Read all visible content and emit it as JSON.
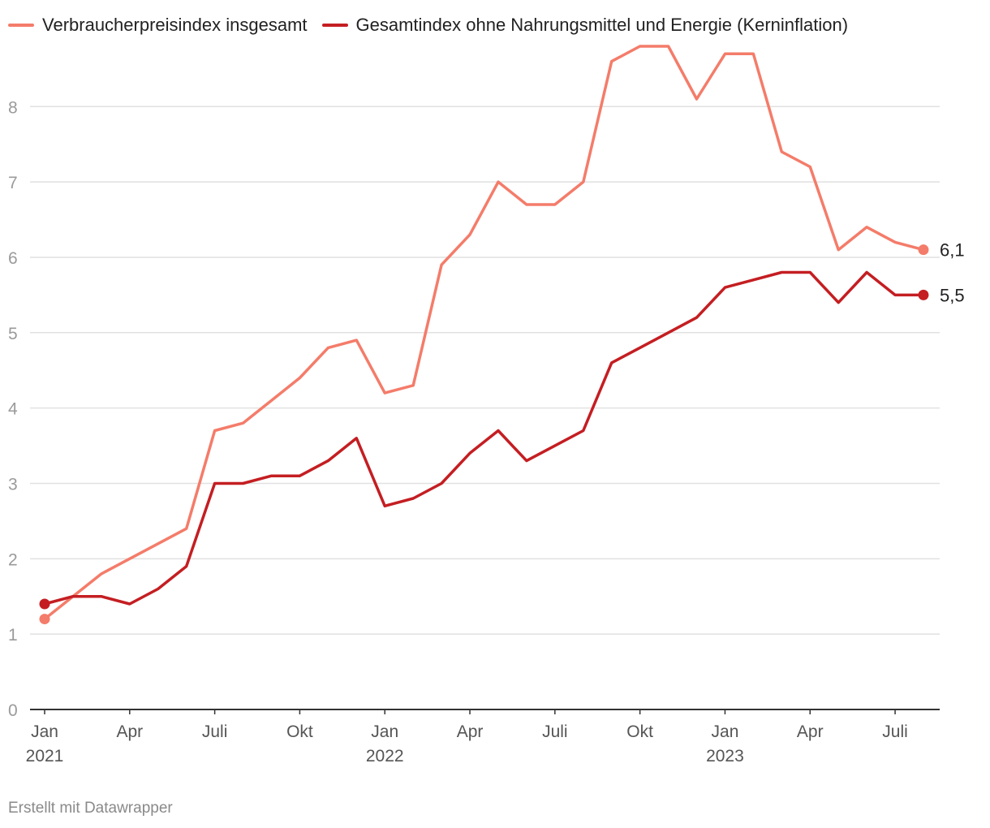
{
  "chart_data": {
    "type": "line",
    "title": "",
    "xlabel": "",
    "ylabel": "",
    "ylim": [
      0,
      8.8
    ],
    "y_ticks": [
      0,
      1,
      2,
      3,
      4,
      5,
      6,
      7,
      8
    ],
    "grid": true,
    "legend_position": "top-left",
    "x": [
      "2021-01",
      "2021-02",
      "2021-03",
      "2021-04",
      "2021-05",
      "2021-06",
      "2021-07",
      "2021-08",
      "2021-09",
      "2021-10",
      "2021-11",
      "2021-12",
      "2022-01",
      "2022-02",
      "2022-03",
      "2022-04",
      "2022-05",
      "2022-06",
      "2022-07",
      "2022-08",
      "2022-09",
      "2022-10",
      "2022-11",
      "2022-12",
      "2023-01",
      "2023-02",
      "2023-03",
      "2023-04",
      "2023-05",
      "2023-06",
      "2023-07",
      "2023-08"
    ],
    "x_ticks": [
      {
        "x": "2021-01",
        "label": "Jan",
        "year": "2021"
      },
      {
        "x": "2021-04",
        "label": "Apr",
        "year": ""
      },
      {
        "x": "2021-07",
        "label": "Juli",
        "year": ""
      },
      {
        "x": "2021-10",
        "label": "Okt",
        "year": ""
      },
      {
        "x": "2022-01",
        "label": "Jan",
        "year": "2022"
      },
      {
        "x": "2022-04",
        "label": "Apr",
        "year": ""
      },
      {
        "x": "2022-07",
        "label": "Juli",
        "year": ""
      },
      {
        "x": "2022-10",
        "label": "Okt",
        "year": ""
      },
      {
        "x": "2023-01",
        "label": "Jan",
        "year": "2023"
      },
      {
        "x": "2023-04",
        "label": "Apr",
        "year": ""
      },
      {
        "x": "2023-07",
        "label": "Juli",
        "year": ""
      }
    ],
    "series": [
      {
        "name": "Verbraucherpreisindex insgesamt",
        "color": "#f47c6a",
        "end_label": "6,1",
        "values": [
          1.2,
          1.5,
          1.8,
          2.0,
          2.2,
          2.4,
          3.7,
          3.8,
          4.1,
          4.4,
          4.8,
          4.9,
          4.2,
          4.3,
          5.9,
          6.3,
          7.0,
          6.7,
          6.7,
          7.0,
          8.6,
          8.8,
          8.8,
          8.1,
          8.7,
          8.7,
          7.4,
          7.2,
          6.1,
          6.4,
          6.2,
          6.1
        ]
      },
      {
        "name": "Gesamtindex ohne Nahrungsmittel und Energie (Kerninflation)",
        "color": "#c41e22",
        "end_label": "5,5",
        "values": [
          1.4,
          1.5,
          1.5,
          1.4,
          1.6,
          1.9,
          3.0,
          3.0,
          3.1,
          3.1,
          3.3,
          3.6,
          2.7,
          2.8,
          3.0,
          3.4,
          3.7,
          3.3,
          3.5,
          3.7,
          4.6,
          4.8,
          5.0,
          5.2,
          5.6,
          5.7,
          5.8,
          5.8,
          5.4,
          5.8,
          5.5,
          5.5
        ]
      }
    ]
  },
  "footer": {
    "credit": "Erstellt mit Datawrapper"
  }
}
